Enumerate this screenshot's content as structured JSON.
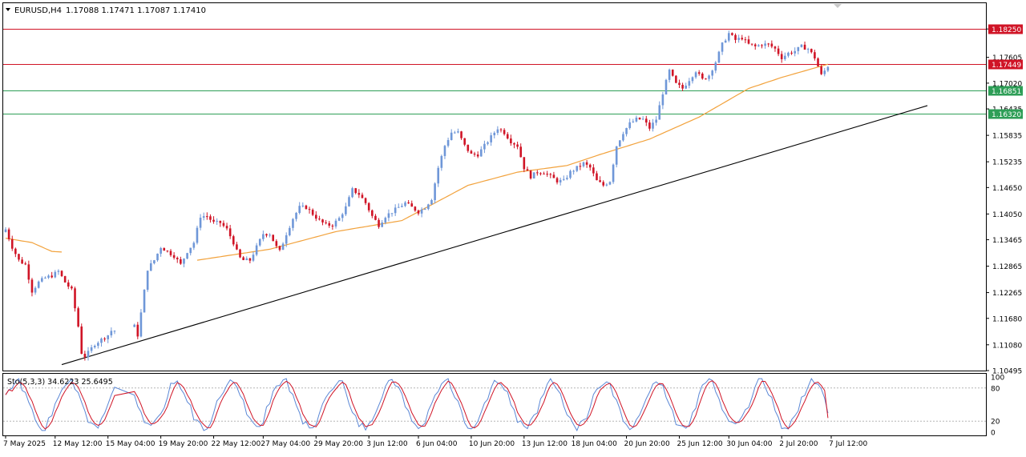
{
  "header": {
    "symbol": "EURUSD,H4",
    "ohlc": "1.17088 1.17471 1.17087 1.17410",
    "dropdown_icon": "triangle-down-icon",
    "scroll_icon": "triangle-down-icon"
  },
  "colors": {
    "bull": "#6f97d8",
    "bear": "#d01426",
    "ma": "#f2a23c",
    "trendline": "#000000",
    "resistance": "#d01426",
    "support": "#2e9e57",
    "stoch_main": "#5b88d6",
    "stoch_signal": "#d01426",
    "frame": "#000000",
    "grid_dotted": "#bbbbbb"
  },
  "chart_data": [
    {
      "type": "candlestick",
      "symbol": "EURUSD",
      "timeframe": "H4",
      "ylim": [
        1.10495,
        1.18835
      ],
      "y_ticks": [
        "1.18250",
        "1.17605",
        "1.17020",
        "1.16435",
        "1.15835",
        "1.15235",
        "1.14650",
        "1.14050",
        "1.13465",
        "1.12865",
        "1.12265",
        "1.11680",
        "1.11080",
        "1.10495"
      ],
      "x_ticks": [
        "7 May 2025",
        "12 May 12:00",
        "15 May 04:00",
        "19 May 20:00",
        "22 May 12:00",
        "27 May 04:00",
        "29 May 20:00",
        "3 Jun 12:00",
        "6 Jun 04:00",
        "10 Jun 20:00",
        "13 Jun 12:00",
        "18 Jun 04:00",
        "20 Jun 20:00",
        "25 Jun 12:00",
        "30 Jun 04:00",
        "2 Jul 20:00",
        "7 Jul 12:00"
      ],
      "horizontal_lines": [
        {
          "label": "1.18250",
          "value": 1.1825,
          "color": "#d01426"
        },
        {
          "label": "1.17449",
          "value": 1.17449,
          "color": "#d01426"
        },
        {
          "label": "1.16851",
          "value": 1.16851,
          "color": "#2e9e57"
        },
        {
          "label": "1.16320",
          "value": 1.1632,
          "color": "#2e9e57"
        }
      ],
      "trendline": {
        "from": [
          1.1063,
          "12 May"
        ],
        "to": [
          1.1651,
          "8 Jul"
        ]
      },
      "ma_series": "50-period moving average",
      "candle_path": [
        [
          0,
          1.137
        ],
        [
          2,
          1.133
        ],
        [
          4,
          1.13
        ],
        [
          6,
          1.129
        ],
        [
          8,
          1.123
        ],
        [
          10,
          1.125
        ],
        [
          12,
          1.126
        ],
        [
          14,
          1.1265
        ],
        [
          16,
          1.1275
        ],
        [
          18,
          1.125
        ],
        [
          20,
          1.1232
        ],
        [
          22,
          1.115
        ],
        [
          23,
          1.109
        ],
        [
          24,
          1.1082
        ],
        [
          25,
          1.109
        ],
        [
          27,
          1.111
        ],
        [
          29,
          1.112
        ],
        [
          31,
          1.113
        ],
        [
          32,
          1.114
        ],
        [
          33,
          1.114
        ],
        [
          39,
          1.115
        ],
        [
          40,
          1.113
        ],
        [
          41,
          1.118
        ],
        [
          43,
          1.128
        ],
        [
          45,
          1.13
        ],
        [
          47,
          1.133
        ],
        [
          49,
          1.132
        ],
        [
          51,
          1.131
        ],
        [
          53,
          1.129
        ],
        [
          55,
          1.132
        ],
        [
          57,
          1.134
        ],
        [
          59,
          1.14
        ],
        [
          61,
          1.14
        ],
        [
          63,
          1.1385
        ],
        [
          65,
          1.1385
        ],
        [
          67,
          1.137
        ],
        [
          69,
          1.134
        ],
        [
          70,
          1.132
        ],
        [
          71,
          1.1305
        ],
        [
          72,
          1.13
        ],
        [
          74,
          1.13
        ],
        [
          76,
          1.133
        ],
        [
          78,
          1.136
        ],
        [
          80,
          1.136
        ],
        [
          82,
          1.133
        ],
        [
          83,
          1.132
        ],
        [
          85,
          1.136
        ],
        [
          87,
          1.1395
        ],
        [
          89,
          1.142
        ],
        [
          91,
          1.142
        ],
        [
          93,
          1.1405
        ],
        [
          95,
          1.139
        ],
        [
          97,
          1.138
        ],
        [
          99,
          1.138
        ],
        [
          101,
          1.1395
        ],
        [
          103,
          1.142
        ],
        [
          105,
          1.146
        ],
        [
          107,
          1.145
        ],
        [
          109,
          1.143
        ],
        [
          111,
          1.14
        ],
        [
          113,
          1.138
        ],
        [
          115,
          1.14
        ],
        [
          117,
          1.141
        ],
        [
          119,
          1.142
        ],
        [
          121,
          1.143
        ],
        [
          123,
          1.142
        ],
        [
          125,
          1.141
        ],
        [
          127,
          1.142
        ],
        [
          129,
          1.144
        ],
        [
          131,
          1.151
        ],
        [
          133,
          1.156
        ],
        [
          135,
          1.159
        ],
        [
          137,
          1.159
        ],
        [
          139,
          1.156
        ],
        [
          141,
          1.154
        ],
        [
          143,
          1.154
        ],
        [
          145,
          1.156
        ],
        [
          147,
          1.158
        ],
        [
          149,
          1.16
        ],
        [
          151,
          1.159
        ],
        [
          153,
          1.157
        ],
        [
          155,
          1.156
        ],
        [
          157,
          1.151
        ],
        [
          159,
          1.149
        ],
        [
          161,
          1.15
        ],
        [
          163,
          1.15
        ],
        [
          165,
          1.149
        ],
        [
          167,
          1.148
        ],
        [
          169,
          1.148
        ],
        [
          171,
          1.15
        ],
        [
          173,
          1.151
        ],
        [
          175,
          1.152
        ],
        [
          177,
          1.151
        ],
        [
          179,
          1.148
        ],
        [
          181,
          1.147
        ],
        [
          183,
          1.148
        ],
        [
          185,
          1.156
        ],
        [
          187,
          1.159
        ],
        [
          189,
          1.161
        ],
        [
          191,
          1.162
        ],
        [
          193,
          1.162
        ],
        [
          195,
          1.16
        ],
        [
          197,
          1.162
        ],
        [
          199,
          1.168
        ],
        [
          201,
          1.173
        ],
        [
          203,
          1.17
        ],
        [
          205,
          1.169
        ],
        [
          207,
          1.171
        ],
        [
          209,
          1.173
        ],
        [
          211,
          1.171
        ],
        [
          213,
          1.172
        ],
        [
          215,
          1.175
        ],
        [
          217,
          1.179
        ],
        [
          219,
          1.1815
        ],
        [
          221,
          1.18
        ],
        [
          223,
          1.1805
        ],
        [
          225,
          1.179
        ],
        [
          227,
          1.1785
        ],
        [
          229,
          1.179
        ],
        [
          231,
          1.179
        ],
        [
          233,
          1.178
        ],
        [
          235,
          1.176
        ],
        [
          237,
          1.177
        ],
        [
          239,
          1.1775
        ],
        [
          241,
          1.1785
        ],
        [
          243,
          1.178
        ],
        [
          245,
          1.176
        ],
        [
          246,
          1.174
        ],
        [
          247,
          1.172
        ],
        [
          248,
          1.173
        ],
        [
          249,
          1.1741
        ]
      ],
      "ma_path": [
        [
          0,
          1.135
        ],
        [
          8,
          1.134
        ],
        [
          14,
          1.132
        ],
        [
          58,
          1.13
        ],
        [
          80,
          1.1325
        ],
        [
          100,
          1.1365
        ],
        [
          120,
          1.139
        ],
        [
          140,
          1.147
        ],
        [
          155,
          1.15
        ],
        [
          170,
          1.1515
        ],
        [
          180,
          1.154
        ],
        [
          195,
          1.1575
        ],
        [
          210,
          1.1625
        ],
        [
          225,
          1.169
        ],
        [
          235,
          1.1715
        ],
        [
          249,
          1.1745
        ]
      ]
    },
    {
      "type": "line",
      "title": "Sto(5,3,3) 34.6223 25.6495",
      "ylim": [
        0,
        100
      ],
      "y_ticks": [
        "100",
        "80",
        "20",
        "0"
      ],
      "levels": [
        80,
        20
      ],
      "series": [
        {
          "name": "main",
          "color": "#5b88d6"
        },
        {
          "name": "signal",
          "color": "#d01426"
        }
      ],
      "last_main": 34.6223,
      "last_signal": 25.6495
    }
  ]
}
